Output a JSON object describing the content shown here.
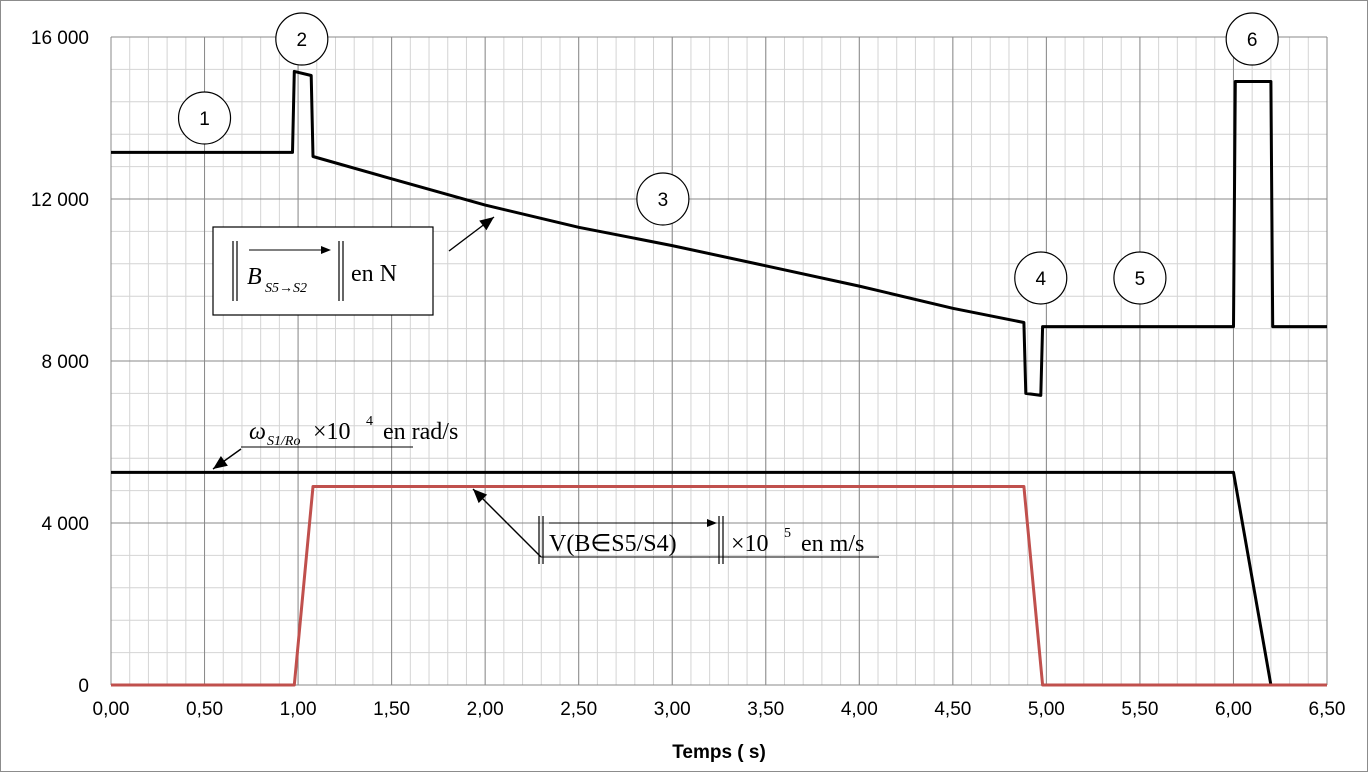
{
  "chart_data": {
    "type": "line",
    "xlabel": "Temps ( s)",
    "ylabel": "",
    "xlim": [
      0,
      6.5
    ],
    "ylim": [
      0,
      16000
    ],
    "x_ticks": [
      "0,00",
      "0,50",
      "1,00",
      "1,50",
      "2,00",
      "2,50",
      "3,00",
      "3,50",
      "4,00",
      "4,50",
      "5,00",
      "5,50",
      "6,00",
      "6,50"
    ],
    "y_ticks": [
      "0",
      "4 000",
      "8 000",
      "12 000",
      "16 000"
    ],
    "grid": true,
    "series": [
      {
        "name": "‖B S5→S2‖ en N",
        "color": "#000000",
        "points": [
          [
            0,
            13150
          ],
          [
            0.97,
            13150
          ],
          [
            0.98,
            15150
          ],
          [
            1.07,
            15050
          ],
          [
            1.08,
            13050
          ],
          [
            1.5,
            12500
          ],
          [
            2.0,
            11850
          ],
          [
            2.5,
            11300
          ],
          [
            3.0,
            10850
          ],
          [
            3.5,
            10350
          ],
          [
            4.0,
            9850
          ],
          [
            4.5,
            9300
          ],
          [
            4.88,
            8950
          ],
          [
            4.89,
            7200
          ],
          [
            4.97,
            7150
          ],
          [
            4.98,
            8850
          ],
          [
            6.0,
            8850
          ],
          [
            6.01,
            14900
          ],
          [
            6.2,
            14900
          ],
          [
            6.21,
            8850
          ],
          [
            6.5,
            8850
          ]
        ]
      },
      {
        "name": "ω S1/Ro ×10⁴ en rad/s",
        "color": "#000000",
        "points": [
          [
            0,
            5250
          ],
          [
            6.0,
            5250
          ],
          [
            6.2,
            0
          ],
          [
            6.5,
            0
          ]
        ]
      },
      {
        "name": "‖V(B∈S5/S4)‖ ×10⁵ en m/s",
        "color": "#c0504d",
        "points": [
          [
            0,
            0
          ],
          [
            0.98,
            0
          ],
          [
            1.08,
            4900
          ],
          [
            4.88,
            4900
          ],
          [
            4.98,
            0
          ],
          [
            6.5,
            0
          ]
        ]
      }
    ],
    "annotations": {
      "force_label_main": "B",
      "force_label_sub": "S5→S2",
      "force_label_unit": "en N",
      "omega_label_main": "ω",
      "omega_label_sub": "S1/Ro",
      "omega_label_mult": "×10",
      "omega_label_exp": "4",
      "omega_label_unit": "en rad/s",
      "velocity_label_main": "V(B∈S5/S4)",
      "velocity_label_mult": "×10",
      "velocity_label_exp": "5",
      "velocity_label_unit": "en m/s"
    },
    "phase_markers": [
      {
        "label": "1",
        "x": 0.5,
        "y": 14000
      },
      {
        "label": "2",
        "x": 1.02,
        "y": 15950
      },
      {
        "label": "3",
        "x": 2.95,
        "y": 12000
      },
      {
        "label": "4",
        "x": 4.97,
        "y": 10050
      },
      {
        "label": "5",
        "x": 5.5,
        "y": 10050
      },
      {
        "label": "6",
        "x": 6.1,
        "y": 15950
      }
    ]
  }
}
